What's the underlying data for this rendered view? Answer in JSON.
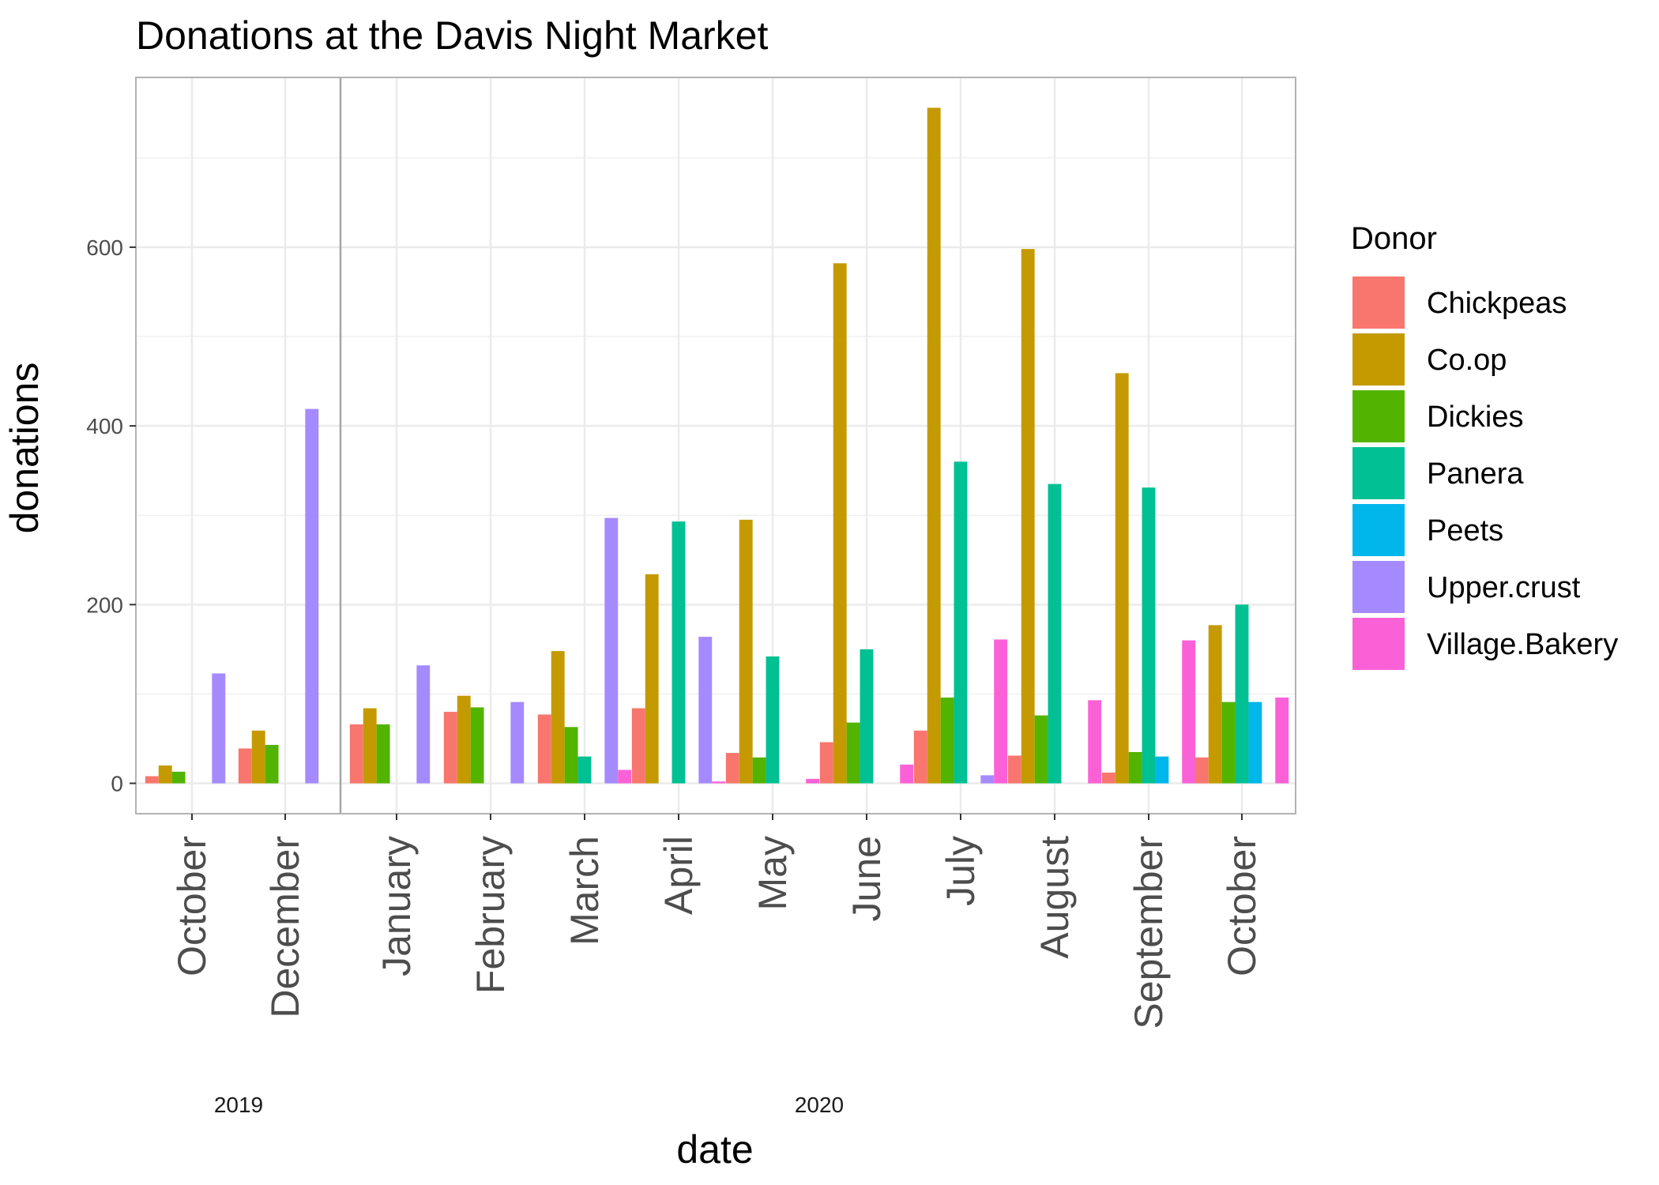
{
  "chart_data": {
    "type": "bar",
    "title": "Donations at the Davis Night Market",
    "xlabel": "date",
    "ylabel": "donations",
    "ylim": [
      -34,
      790
    ],
    "yticks": [
      0,
      200,
      400,
      600
    ],
    "grid": true,
    "groups": [
      {
        "label": "2019",
        "months": [
          "October",
          "December"
        ]
      },
      {
        "label": "2020",
        "months": [
          "January",
          "February",
          "March",
          "April",
          "May",
          "June",
          "July",
          "August",
          "September",
          "October"
        ]
      }
    ],
    "categories": [
      "October",
      "December",
      "January",
      "February",
      "March",
      "April",
      "May",
      "June",
      "July",
      "August",
      "September",
      "October"
    ],
    "legend": {
      "title": "Donor",
      "position": "right"
    },
    "series": [
      {
        "name": "Chickpeas",
        "color": "#F8766D",
        "values": [
          8,
          39,
          66,
          80,
          77,
          84,
          34,
          46,
          59,
          31,
          12,
          29
        ]
      },
      {
        "name": "Co.op",
        "color": "#C49A00",
        "values": [
          20,
          59,
          84,
          98,
          148,
          234,
          295,
          582,
          756,
          598,
          459,
          177
        ]
      },
      {
        "name": "Dickies",
        "color": "#53B400",
        "values": [
          13,
          43,
          66,
          85,
          63,
          0,
          29,
          68,
          96,
          76,
          35,
          91
        ]
      },
      {
        "name": "Panera",
        "color": "#00C094",
        "values": [
          0,
          0,
          0,
          0,
          30,
          293,
          142,
          150,
          360,
          335,
          331,
          200
        ]
      },
      {
        "name": "Peets",
        "color": "#00B6EB",
        "values": [
          0,
          0,
          0,
          0,
          0,
          0,
          0,
          0,
          0,
          0,
          30,
          91
        ]
      },
      {
        "name": "Upper.crust",
        "color": "#A58AFF",
        "values": [
          123,
          419,
          132,
          91,
          297,
          164,
          0,
          0,
          9,
          0,
          0,
          0
        ]
      },
      {
        "name": "Village.Bakery",
        "color": "#FB61D7",
        "values": [
          0,
          0,
          0,
          0,
          15,
          2,
          5,
          21,
          161,
          93,
          160,
          96
        ]
      }
    ]
  }
}
